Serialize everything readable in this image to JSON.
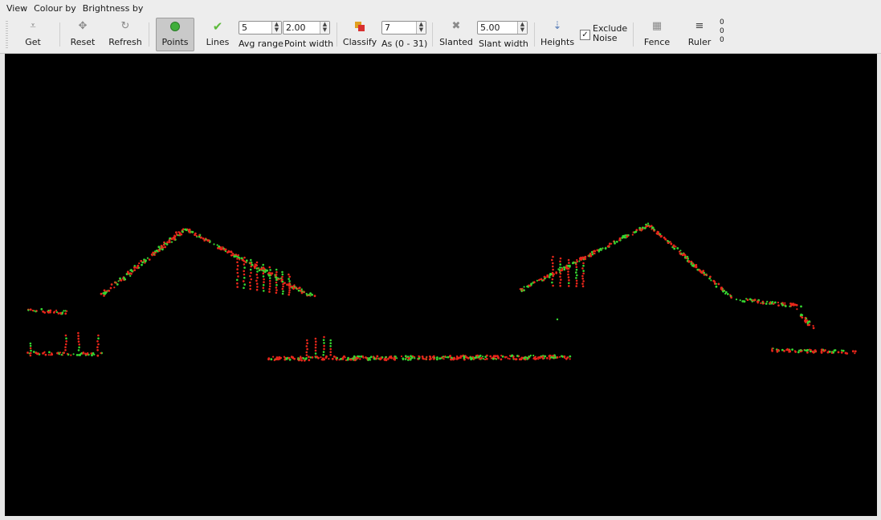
{
  "menu": [
    "View",
    "Colour by",
    "Brightness by"
  ],
  "toolbar": {
    "get": "Get",
    "reset": "Reset",
    "refresh": "Refresh",
    "points": "Points",
    "lines": "Lines",
    "avg_range_value": "5",
    "avg_range_label": "Avg range",
    "point_width_value": "2.00",
    "point_width_label": "Point width",
    "classify": "Classify",
    "as_value": "7",
    "as_label": "As (0 - 31)",
    "slanted": "Slanted",
    "slant_width_value": "5.00",
    "slant_width_label": "Slant width",
    "heights": "Heights",
    "exclude_noise_line1": "Exclude",
    "exclude_noise_line2": "Noise",
    "exclude_noise_checked": true,
    "fence": "Fence",
    "ruler": "Ruler",
    "coords": [
      "0",
      "0",
      "0"
    ]
  },
  "colors": {
    "canvas_bg": "#000000",
    "point_red": "#e8261a",
    "point_green": "#35d631",
    "points_icon": "#3fae3a",
    "lines_icon": "#5dba3b"
  }
}
